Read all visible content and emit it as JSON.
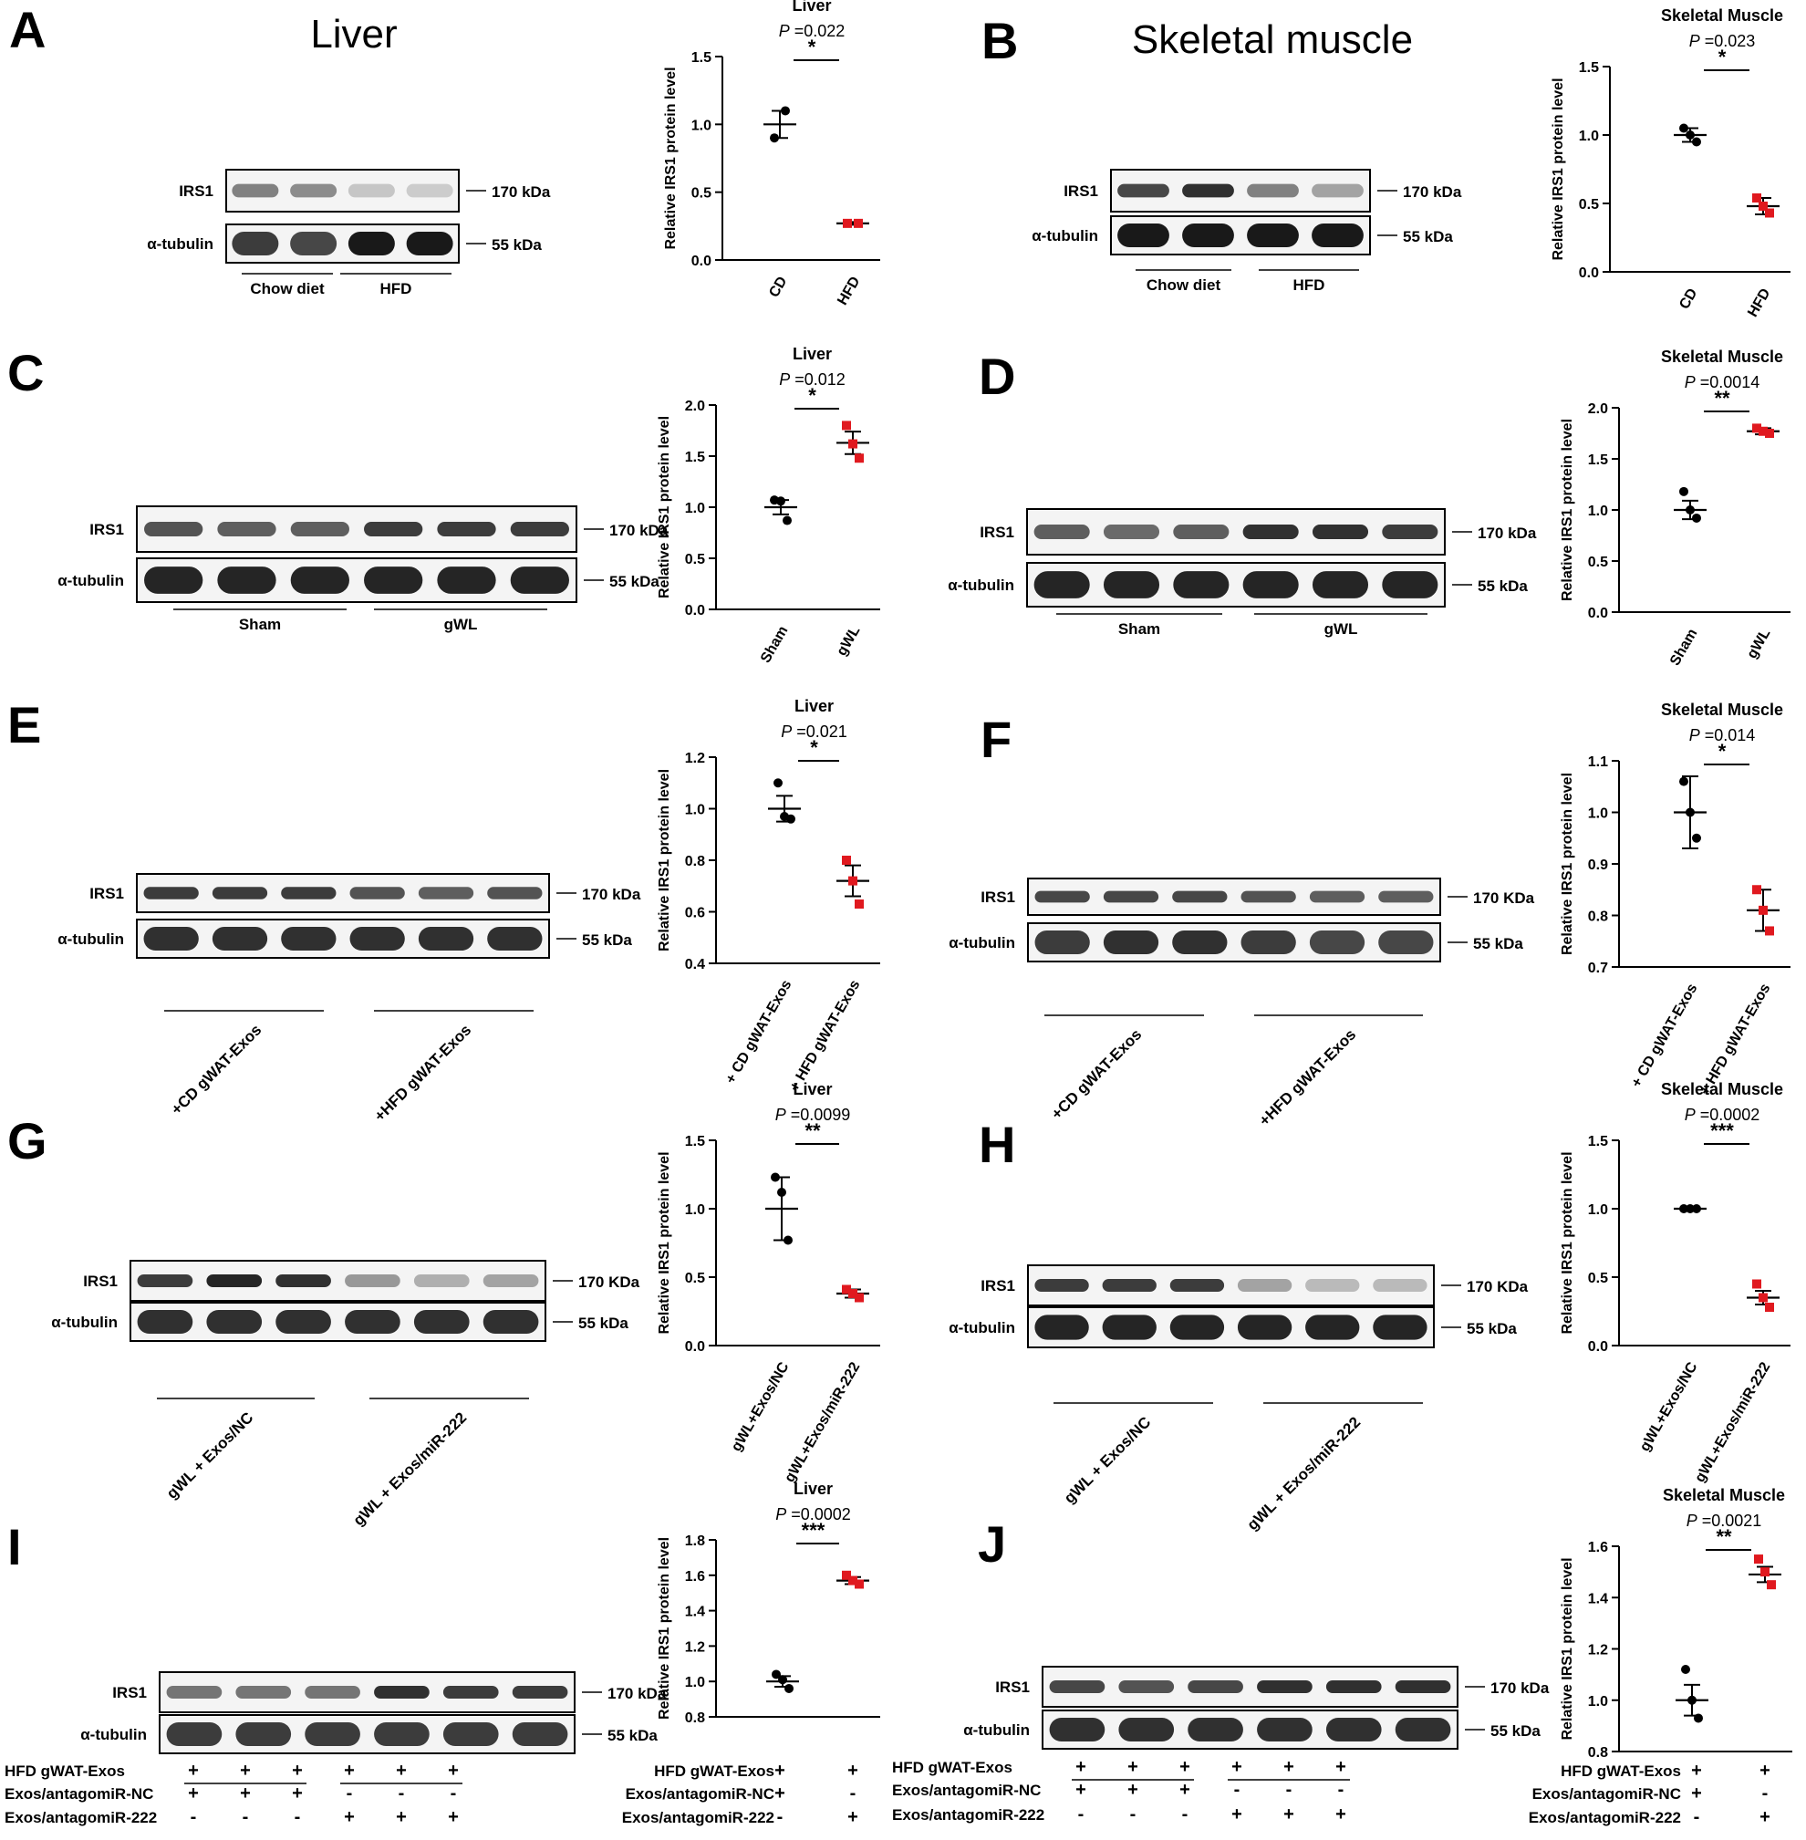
{
  "figure": {
    "panels": [
      {
        "letter": "A",
        "tissue_title": "Liver",
        "blot": {
          "rows": [
            "IRS1",
            "α-tubulin"
          ],
          "markers": [
            "170 kDa",
            "55 kDa"
          ],
          "groups": [
            "Chow diet",
            "HFD"
          ],
          "group_label_rotated": false,
          "lanes": 4,
          "bottom_table": null,
          "irs1_intensity": [
            0.55,
            0.5,
            0.25,
            0.22
          ],
          "tub_intensity": [
            0.85,
            0.8,
            1.0,
            1.0
          ]
        }
      },
      {
        "letter": "B",
        "tissue_title": "Skeletal muscle",
        "blot": {
          "rows": [
            "IRS1",
            "α-tubulin"
          ],
          "markers": [
            "170 kDa",
            "55 kDa"
          ],
          "groups": [
            "Chow diet",
            "HFD"
          ],
          "group_label_rotated": false,
          "lanes": 4,
          "bottom_table": null,
          "irs1_intensity": [
            0.8,
            0.9,
            0.55,
            0.4
          ],
          "tub_intensity": [
            1.0,
            1.0,
            1.0,
            1.0
          ]
        }
      },
      {
        "letter": "C",
        "tissue_title": "",
        "blot": {
          "rows": [
            "IRS1",
            "α-tubulin"
          ],
          "markers": [
            "170 kDa",
            "55 kDa"
          ],
          "groups": [
            "Sham",
            "gWL"
          ],
          "group_label_rotated": false,
          "lanes": 6,
          "bottom_table": null,
          "irs1_intensity": [
            0.75,
            0.7,
            0.7,
            0.85,
            0.85,
            0.85
          ],
          "tub_intensity": [
            0.95,
            0.95,
            0.95,
            0.95,
            0.95,
            0.95
          ]
        }
      },
      {
        "letter": "D",
        "tissue_title": "",
        "blot": {
          "rows": [
            "IRS1",
            "α-tubulin"
          ],
          "markers": [
            "170 kDa",
            "55 kDa"
          ],
          "groups": [
            "Sham",
            "gWL"
          ],
          "group_label_rotated": false,
          "lanes": 6,
          "bottom_table": null,
          "irs1_intensity": [
            0.7,
            0.65,
            0.7,
            0.9,
            0.9,
            0.85
          ],
          "tub_intensity": [
            0.95,
            0.95,
            0.95,
            0.95,
            0.95,
            0.95
          ]
        }
      },
      {
        "letter": "E",
        "tissue_title": "",
        "blot": {
          "rows": [
            "IRS1",
            "α-tubulin"
          ],
          "markers": [
            "170 kDa",
            "55 kDa"
          ],
          "groups": [
            "+CD gWAT-Exos",
            "+HFD gWAT-Exos"
          ],
          "group_label_rotated": true,
          "lanes": 6,
          "bottom_table": null,
          "irs1_intensity": [
            0.85,
            0.85,
            0.85,
            0.75,
            0.7,
            0.75
          ],
          "tub_intensity": [
            0.9,
            0.9,
            0.9,
            0.9,
            0.9,
            0.9
          ]
        }
      },
      {
        "letter": "F",
        "tissue_title": "",
        "blot": {
          "rows": [
            "IRS1",
            "α-tubulin"
          ],
          "markers": [
            "170 KDa",
            "55 kDa"
          ],
          "groups": [
            "+CD gWAT-Exos",
            "+HFD gWAT-Exos"
          ],
          "group_label_rotated": true,
          "lanes": 6,
          "bottom_table": null,
          "irs1_intensity": [
            0.8,
            0.8,
            0.8,
            0.75,
            0.7,
            0.7
          ],
          "tub_intensity": [
            0.85,
            0.9,
            0.9,
            0.85,
            0.8,
            0.8
          ]
        }
      },
      {
        "letter": "G",
        "tissue_title": "",
        "blot": {
          "rows": [
            "IRS1",
            "α-tubulin"
          ],
          "markers": [
            "170 KDa",
            "55 kDa"
          ],
          "groups": [
            "gWL + Exos/NC",
            "gWL + Exos/miR-222"
          ],
          "group_label_rotated": true,
          "lanes": 6,
          "bottom_table": null,
          "irs1_intensity": [
            0.85,
            0.95,
            0.9,
            0.45,
            0.35,
            0.4
          ],
          "tub_intensity": [
            0.9,
            0.9,
            0.9,
            0.9,
            0.9,
            0.9
          ]
        }
      },
      {
        "letter": "H",
        "tissue_title": "",
        "blot": {
          "rows": [
            "IRS1",
            "α-tubulin"
          ],
          "markers": [
            "170 KDa",
            "55 kDa"
          ],
          "groups": [
            "gWL + Exos/NC",
            "gWL + Exos/miR-222"
          ],
          "group_label_rotated": true,
          "lanes": 6,
          "bottom_table": null,
          "irs1_intensity": [
            0.85,
            0.85,
            0.85,
            0.4,
            0.3,
            0.3
          ],
          "tub_intensity": [
            0.95,
            0.95,
            0.95,
            0.95,
            0.95,
            0.95
          ]
        }
      },
      {
        "letter": "I",
        "tissue_title": "",
        "blot": {
          "rows": [
            "IRS1",
            "α-tubulin"
          ],
          "markers": [
            "170 kDa",
            "55 kDa"
          ],
          "groups": [],
          "group_label_rotated": false,
          "lanes": 6,
          "bottom_table": {
            "rows": [
              "HFD gWAT-Exos",
              "Exos/antagomiR-NC",
              "Exos/antagomiR-222"
            ],
            "signs": [
              [
                "+",
                "+",
                "+",
                "+",
                "+",
                "+"
              ],
              [
                "+",
                "+",
                "+",
                "-",
                "-",
                "-"
              ],
              [
                "-",
                "-",
                "-",
                "+",
                "+",
                "+"
              ]
            ]
          },
          "irs1_intensity": [
            0.6,
            0.6,
            0.6,
            0.9,
            0.85,
            0.85
          ],
          "tub_intensity": [
            0.85,
            0.85,
            0.85,
            0.85,
            0.85,
            0.85
          ]
        }
      },
      {
        "letter": "J",
        "tissue_title": "",
        "blot": {
          "rows": [
            "IRS1",
            "α-tubulin"
          ],
          "markers": [
            "170 kDa",
            "55 kDa"
          ],
          "groups": [],
          "group_label_rotated": false,
          "lanes": 6,
          "bottom_table": {
            "rows": [
              "HFD gWAT-Exos",
              "Exos/antagomiR-NC",
              "Exos/antagomiR-222"
            ],
            "signs": [
              [
                "+",
                "+",
                "+",
                "+",
                "+",
                "+"
              ],
              [
                "+",
                "+",
                "+",
                "-",
                "-",
                "-"
              ],
              [
                "-",
                "-",
                "-",
                "+",
                "+",
                "+"
              ]
            ]
          },
          "irs1_intensity": [
            0.8,
            0.75,
            0.8,
            0.9,
            0.9,
            0.9
          ],
          "tub_intensity": [
            0.9,
            0.9,
            0.9,
            0.9,
            0.9,
            0.9
          ]
        }
      }
    ]
  },
  "chart_data": [
    {
      "panel": "A",
      "type": "scatter",
      "title": "Liver",
      "ylabel": "Relative IRS1 protein level",
      "ylim": [
        0,
        1.5
      ],
      "yticks": [
        "0.0",
        "0.5",
        "1.0",
        "1.5"
      ],
      "categories": [
        "CD",
        "HFD"
      ],
      "category_rotated": true,
      "p_label": "P",
      "p_value": "=0.022",
      "stars": "*",
      "series": [
        {
          "points": [
            1.1,
            0.9
          ],
          "mean": 1.0,
          "err": 0.1,
          "color": "#000000",
          "marker": "circle"
        },
        {
          "points": [
            0.27,
            0.27
          ],
          "mean": 0.27,
          "err": 0.01,
          "color": "#e0191f",
          "marker": "square"
        }
      ]
    },
    {
      "panel": "B",
      "type": "scatter",
      "title": "Skeletal Muscle",
      "ylabel": "Relative IRS1 protein level",
      "ylim": [
        0,
        1.5
      ],
      "yticks": [
        "0.0",
        "0.5",
        "1.0",
        "1.5"
      ],
      "categories": [
        "CD",
        "HFD"
      ],
      "category_rotated": true,
      "p_label": "P",
      "p_value": "=0.023",
      "stars": "*",
      "series": [
        {
          "points": [
            1.05,
            1.0,
            0.95
          ],
          "mean": 1.0,
          "err": 0.05,
          "color": "#000000",
          "marker": "circle"
        },
        {
          "points": [
            0.54,
            0.48,
            0.43
          ],
          "mean": 0.48,
          "err": 0.06,
          "color": "#e0191f",
          "marker": "square"
        }
      ]
    },
    {
      "panel": "C",
      "type": "scatter",
      "title": "Liver",
      "ylabel": "Relative IRS1 protein level",
      "ylim": [
        0,
        2.0
      ],
      "yticks": [
        "0.0",
        "0.5",
        "1.0",
        "1.5",
        "2.0"
      ],
      "categories": [
        "Sham",
        "gWL"
      ],
      "category_rotated": true,
      "p_label": "P",
      "p_value": "=0.012",
      "stars": "*",
      "series": [
        {
          "points": [
            1.07,
            1.06,
            0.87
          ],
          "mean": 1.0,
          "err": 0.07,
          "color": "#000000",
          "marker": "circle"
        },
        {
          "points": [
            1.8,
            1.62,
            1.48
          ],
          "mean": 1.63,
          "err": 0.11,
          "color": "#e0191f",
          "marker": "square"
        }
      ]
    },
    {
      "panel": "D",
      "type": "scatter",
      "title": "Skeletal Muscle",
      "ylabel": "Relative IRS1 protein level",
      "ylim": [
        0,
        2.0
      ],
      "yticks": [
        "0.0",
        "0.5",
        "1.0",
        "1.5",
        "2.0"
      ],
      "categories": [
        "Sham",
        "gWL"
      ],
      "category_rotated": true,
      "p_label": "P",
      "p_value": "=0.0014",
      "stars": "**",
      "series": [
        {
          "points": [
            1.18,
            1.0,
            0.92
          ],
          "mean": 1.0,
          "err": 0.09,
          "color": "#000000",
          "marker": "circle"
        },
        {
          "points": [
            1.8,
            1.77,
            1.75
          ],
          "mean": 1.77,
          "err": 0.03,
          "color": "#e0191f",
          "marker": "square"
        }
      ]
    },
    {
      "panel": "E",
      "type": "scatter",
      "title": "Liver",
      "ylabel": "Relative IRS1 protein level",
      "ylim": [
        0.4,
        1.2
      ],
      "yticks": [
        "0.4",
        "0.6",
        "0.8",
        "1.0",
        "1.2"
      ],
      "categories": [
        "+ CD gWAT-Exos",
        "+ HFD gWAT-Exos"
      ],
      "category_rotated": true,
      "p_label": "P",
      "p_value": "=0.021",
      "stars": "*",
      "series": [
        {
          "points": [
            1.1,
            0.97,
            0.96
          ],
          "mean": 1.0,
          "err": 0.05,
          "color": "#000000",
          "marker": "circle"
        },
        {
          "points": [
            0.8,
            0.72,
            0.63
          ],
          "mean": 0.72,
          "err": 0.06,
          "color": "#e0191f",
          "marker": "square"
        }
      ]
    },
    {
      "panel": "F",
      "type": "scatter",
      "title": "Skeletal Muscle",
      "ylabel": "Relative IRS1 protein level",
      "ylim": [
        0.7,
        1.1
      ],
      "yticks": [
        "0.7",
        "0.8",
        "0.9",
        "1.0",
        "1.1"
      ],
      "categories": [
        "+ CD gWAT-Exos",
        "+ HFD gWAT-Exos"
      ],
      "category_rotated": true,
      "p_label": "P",
      "p_value": "=0.014",
      "stars": "*",
      "series": [
        {
          "points": [
            1.06,
            1.0,
            0.95
          ],
          "mean": 1.0,
          "err": 0.07,
          "color": "#000000",
          "marker": "circle"
        },
        {
          "points": [
            0.85,
            0.81,
            0.77
          ],
          "mean": 0.81,
          "err": 0.04,
          "color": "#e0191f",
          "marker": "square"
        }
      ]
    },
    {
      "panel": "G",
      "type": "scatter",
      "title": "Liver",
      "ylabel": "Relative IRS1 protein level",
      "ylim": [
        0,
        1.5
      ],
      "yticks": [
        "0.0",
        "0.5",
        "1.0",
        "1.5"
      ],
      "categories": [
        "gWL+Exos/NC",
        "gWL+Exos/miR-222"
      ],
      "category_rotated": true,
      "p_label": "P",
      "p_value": "=0.0099",
      "stars": "**",
      "series": [
        {
          "points": [
            1.23,
            1.12,
            0.77
          ],
          "mean": 1.0,
          "err": 0.23,
          "color": "#000000",
          "marker": "circle"
        },
        {
          "points": [
            0.41,
            0.38,
            0.35
          ],
          "mean": 0.38,
          "err": 0.03,
          "color": "#e0191f",
          "marker": "square"
        }
      ]
    },
    {
      "panel": "H",
      "type": "scatter",
      "title": "Skeletal Muscle",
      "ylabel": "Relative IRS1 protein level",
      "ylim": [
        0,
        1.5
      ],
      "yticks": [
        "0.0",
        "0.5",
        "1.0",
        "1.5"
      ],
      "categories": [
        "gWL+Exos/NC",
        "gWL+Exos/miR-222"
      ],
      "category_rotated": true,
      "p_label": "P",
      "p_value": "=0.0002",
      "stars": "***",
      "series": [
        {
          "points": [
            1.0,
            1.0,
            1.0
          ],
          "mean": 1.0,
          "err": 0.005,
          "color": "#000000",
          "marker": "circle"
        },
        {
          "points": [
            0.45,
            0.35,
            0.28
          ],
          "mean": 0.35,
          "err": 0.05,
          "color": "#e0191f",
          "marker": "square"
        }
      ]
    },
    {
      "panel": "I",
      "type": "scatter",
      "title": "Liver",
      "ylabel": "Relative IRS1 protein level",
      "ylim": [
        0.8,
        1.8
      ],
      "yticks": [
        "0.8",
        "1.0",
        "1.2",
        "1.4",
        "1.6",
        "1.8"
      ],
      "categories": [
        "",
        ""
      ],
      "category_rotated": false,
      "p_label": "P",
      "p_value": "=0.0002",
      "stars": "***",
      "table_rows": [
        "HFD gWAT-Exos",
        "Exos/antagomiR-NC",
        "Exos/antagomiR-222"
      ],
      "table_signs": [
        [
          "+",
          "+"
        ],
        [
          "+",
          "-"
        ],
        [
          "-",
          "+"
        ]
      ],
      "series": [
        {
          "points": [
            1.04,
            1.01,
            0.96
          ],
          "mean": 1.0,
          "err": 0.03,
          "color": "#000000",
          "marker": "circle"
        },
        {
          "points": [
            1.6,
            1.57,
            1.55
          ],
          "mean": 1.57,
          "err": 0.02,
          "color": "#e0191f",
          "marker": "square"
        }
      ]
    },
    {
      "panel": "J",
      "type": "scatter",
      "title": "Skeletal Muscle",
      "ylabel": "Relative IRS1 protein level",
      "ylim": [
        0.8,
        1.6
      ],
      "yticks": [
        "0.8",
        "1.0",
        "1.2",
        "1.4",
        "1.6"
      ],
      "categories": [
        "",
        ""
      ],
      "category_rotated": false,
      "p_label": "P",
      "p_value": "=0.0021",
      "stars": "**",
      "table_rows": [
        "HFD gWAT-Exos",
        "Exos/antagomiR-NC",
        "Exos/antagomiR-222"
      ],
      "table_signs": [
        [
          "+",
          "+"
        ],
        [
          "+",
          "-"
        ],
        [
          "-",
          "+"
        ]
      ],
      "series": [
        {
          "points": [
            1.12,
            1.0,
            0.93
          ],
          "mean": 1.0,
          "err": 0.06,
          "color": "#000000",
          "marker": "circle"
        },
        {
          "points": [
            1.55,
            1.5,
            1.45
          ],
          "mean": 1.49,
          "err": 0.03,
          "color": "#e0191f",
          "marker": "square"
        }
      ]
    }
  ]
}
